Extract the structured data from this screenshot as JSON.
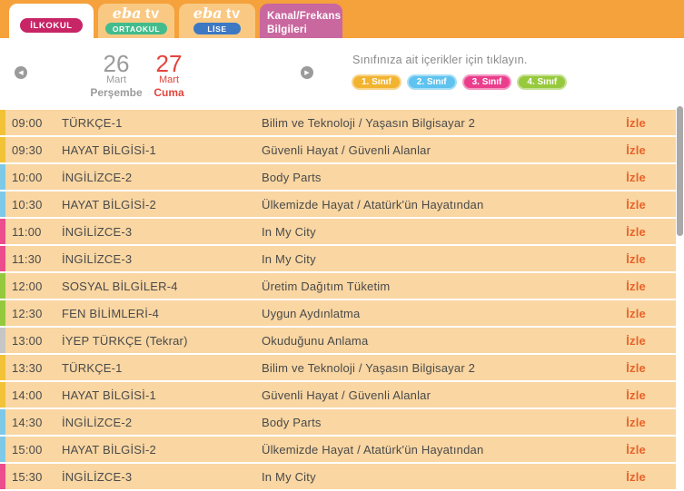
{
  "header": {
    "eba_logo": {
      "eba": "eba",
      "tv": "tv"
    },
    "ilkokul_label": "İLKOKUL",
    "ortaokul_label": "ORTAOKUL",
    "lise_label": "LİSE",
    "kanal_label": "Kanal/Frekans Bilgileri"
  },
  "date_nav": {
    "prev_day": {
      "day": "26",
      "month": "Mart",
      "weekday": "Perşembe"
    },
    "current_day": {
      "day": "27",
      "month": "Mart",
      "weekday": "Cuma"
    }
  },
  "grade_filter": {
    "caption": "Sınıfınıza ait içerikler için tıklayın.",
    "buttons": [
      {
        "label": "1. Sınıf",
        "color": "#F2B32F"
      },
      {
        "label": "2. Sınıf",
        "color": "#5EC3EE"
      },
      {
        "label": "3. Sınıf",
        "color": "#EA3E8D"
      },
      {
        "label": "4. Sınıf",
        "color": "#97C93D"
      }
    ]
  },
  "schedule": {
    "watch_label": "İzle",
    "rows": [
      {
        "time": "09:00",
        "subject": "TÜRKÇE-1",
        "topic": "Bilim ve Teknoloji / Yaşasın Bilgisayar 2",
        "stripe": "#F2C237"
      },
      {
        "time": "09:30",
        "subject": "HAYAT BİLGİSİ-1",
        "topic": "Güvenli Hayat / Güvenli Alanlar",
        "stripe": "#F2C237"
      },
      {
        "time": "10:00",
        "subject": "İNGİLİZCE-2",
        "topic": "Body Parts",
        "stripe": "#7FC9E8"
      },
      {
        "time": "10:30",
        "subject": "HAYAT BİLGİSİ-2",
        "topic": "Ülkemizde Hayat / Atatürk'ün Hayatından",
        "stripe": "#7FC9E8"
      },
      {
        "time": "11:00",
        "subject": "İNGİLİZCE-3",
        "topic": "In My City",
        "stripe": "#EC4D8C"
      },
      {
        "time": "11:30",
        "subject": "İNGİLİZCE-3",
        "topic": "In My City",
        "stripe": "#EC4D8C"
      },
      {
        "time": "12:00",
        "subject": "SOSYAL BİLGİLER-4",
        "topic": "Üretim Dağıtım Tüketim",
        "stripe": "#95C93D"
      },
      {
        "time": "12:30",
        "subject": "FEN BİLİMLERİ-4",
        "topic": "Uygun Aydınlatma",
        "stripe": "#95C93D"
      },
      {
        "time": "13:00",
        "subject": "İYEP TÜRKÇE (Tekrar)",
        "topic": "Okuduğunu Anlama",
        "stripe": "#C6C6C6"
      },
      {
        "time": "13:30",
        "subject": "TÜRKÇE-1",
        "topic": "Bilim ve Teknoloji / Yaşasın Bilgisayar 2",
        "stripe": "#F2C237"
      },
      {
        "time": "14:00",
        "subject": "HAYAT BİLGİSİ-1",
        "topic": "Güvenli Hayat / Güvenli Alanlar",
        "stripe": "#F2C237"
      },
      {
        "time": "14:30",
        "subject": "İNGİLİZCE-2",
        "topic": "Body Parts",
        "stripe": "#7FC9E8"
      },
      {
        "time": "15:00",
        "subject": "HAYAT BİLGİSİ-2",
        "topic": "Ülkemizde Hayat / Atatürk'ün Hayatından",
        "stripe": "#7FC9E8"
      },
      {
        "time": "15:30",
        "subject": "İNGİLİZCE-3",
        "topic": "In My City",
        "stripe": "#EC4D8C"
      }
    ]
  },
  "icons": {
    "prev_arrow": "◀",
    "next_arrow": "▶"
  },
  "colors": {
    "topbar": "#F5A13C",
    "tab_bg": "#F9C983",
    "tab_kanal": "#C9679F",
    "pill_ilkokul": "#C72566",
    "pill_ortaokul": "#43BC8D",
    "pill_lise": "#3D78C3",
    "row_bg": "#F9D6A2",
    "watch_link": "#E8632B",
    "date_active": "#E2453C",
    "date_inactive": "#9B9B9B"
  }
}
